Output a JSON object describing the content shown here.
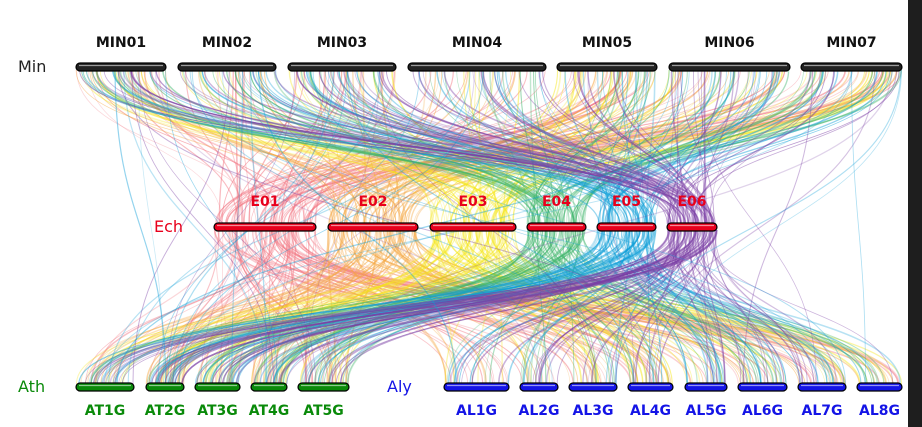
{
  "colors": {
    "min_bar": "#1a1a1a",
    "ech": "#e8001c",
    "ath": "#0a8a0a",
    "aly": "#1414e6",
    "species_min": "#222222",
    "min_label": "#111111",
    "link_palette": [
      "#f2727f",
      "#f5a742",
      "#f5e616",
      "#3fb56b",
      "#0f9fd8",
      "#7b3fa5"
    ]
  },
  "species": {
    "min": "Min",
    "ech": "Ech",
    "ath": "Ath",
    "aly": "Aly"
  },
  "min_chromosomes": [
    {
      "name": "MIN01"
    },
    {
      "name": "MIN02"
    },
    {
      "name": "MIN03"
    },
    {
      "name": "MIN04"
    },
    {
      "name": "MIN05"
    },
    {
      "name": "MIN06"
    },
    {
      "name": "MIN07"
    }
  ],
  "ech_chromosomes": [
    {
      "name": "E01"
    },
    {
      "name": "E02"
    },
    {
      "name": "E03"
    },
    {
      "name": "E04"
    },
    {
      "name": "E05"
    },
    {
      "name": "E06"
    }
  ],
  "ath_chromosomes": [
    {
      "name": "AT1G"
    },
    {
      "name": "AT2G"
    },
    {
      "name": "AT3G"
    },
    {
      "name": "AT4G"
    },
    {
      "name": "AT5G"
    }
  ],
  "aly_chromosomes": [
    {
      "name": "AL1G"
    },
    {
      "name": "AL2G"
    },
    {
      "name": "AL3G"
    },
    {
      "name": "AL4G"
    },
    {
      "name": "AL5G"
    },
    {
      "name": "AL6G"
    },
    {
      "name": "AL7G"
    },
    {
      "name": "AL8G"
    }
  ]
}
